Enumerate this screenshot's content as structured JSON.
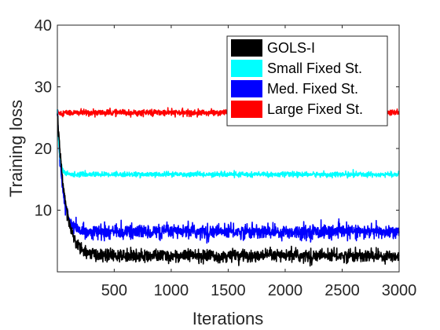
{
  "chart_data": {
    "type": "line",
    "xlabel": "Iterations",
    "ylabel": "Training loss",
    "xlim": [
      1,
      3000
    ],
    "ylim": [
      0,
      40
    ],
    "x_ticks": [
      500,
      1000,
      1500,
      2000,
      2500,
      3000
    ],
    "y_ticks": [
      10,
      20,
      30,
      40
    ],
    "grid": false,
    "legend_position": "top-right",
    "series": [
      {
        "name": "GOLS-I",
        "color": "#000000",
        "start": 26,
        "plateau": 2.6,
        "decay_iterations": 70,
        "noise": 0.9,
        "x": [
          1,
          25,
          50,
          100,
          150,
          200,
          300,
          500,
          750,
          1000,
          1500,
          2000,
          2500,
          3000
        ],
        "values": [
          26,
          17,
          11,
          6,
          5,
          4.2,
          3.8,
          3.3,
          3.1,
          3.0,
          2.9,
          2.8,
          2.7,
          2.6
        ]
      },
      {
        "name": "Small Fixed St.",
        "color": "#00ffff",
        "start": 26,
        "plateau": 15.8,
        "decay_iterations": 18,
        "noise": 0.35,
        "x": [
          1,
          25,
          50,
          100,
          500,
          1000,
          1500,
          2000,
          2500,
          3000
        ],
        "values": [
          26,
          17,
          15.9,
          15.8,
          15.8,
          15.8,
          15.8,
          15.8,
          15.8,
          15.8
        ]
      },
      {
        "name": "Med. Fixed St.",
        "color": "#0000ff",
        "start": 26,
        "plateau": 6.5,
        "decay_iterations": 45,
        "noise": 1.0,
        "x": [
          1,
          25,
          50,
          100,
          150,
          200,
          300,
          500,
          1000,
          1500,
          2000,
          2500,
          3000
        ],
        "values": [
          26,
          15,
          11,
          8.5,
          7.5,
          7.0,
          6.8,
          6.6,
          6.5,
          6.5,
          6.5,
          6.5,
          6.5
        ]
      },
      {
        "name": "Large Fixed St.",
        "color": "#ff0000",
        "start": 26,
        "plateau": 25.8,
        "decay_iterations": 5,
        "noise": 0.45,
        "x": [
          1,
          500,
          1000,
          1500,
          2000,
          2500,
          3000
        ],
        "values": [
          26,
          25.8,
          25.8,
          25.8,
          25.8,
          25.8,
          25.8
        ]
      }
    ]
  }
}
